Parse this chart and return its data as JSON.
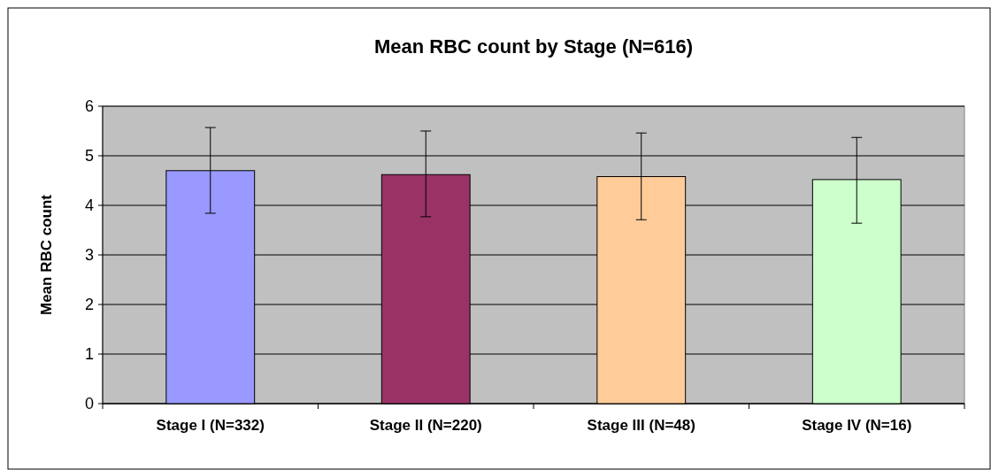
{
  "chart_data": {
    "type": "bar",
    "title": "Mean RBC count by Stage (N=616)",
    "ylabel": "Mean RBC count",
    "categories": [
      "Stage I (N=332)",
      "Stage II (N=220)",
      "Stage III (N=48)",
      "Stage IV (N=16)"
    ],
    "values": [
      4.7,
      4.62,
      4.58,
      4.52
    ],
    "colors": [
      "#9999ff",
      "#993366",
      "#ffcc99",
      "#ccffcc"
    ],
    "errors": [
      [
        3.84,
        5.57
      ],
      [
        3.77,
        5.5
      ],
      [
        3.71,
        5.46
      ],
      [
        3.64,
        5.37
      ]
    ],
    "ylim": [
      0,
      6
    ],
    "yticks": [
      0,
      1,
      2,
      3,
      4,
      5,
      6
    ],
    "grid": "y"
  }
}
